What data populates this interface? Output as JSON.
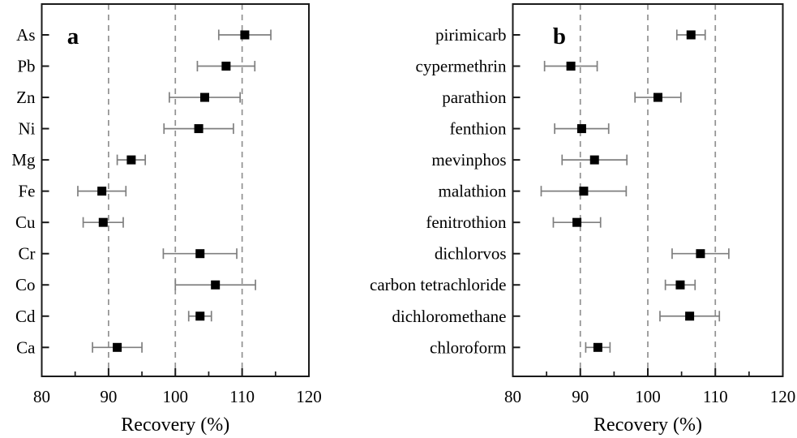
{
  "colors": {
    "background": "#ffffff",
    "marker": "#000000",
    "error_bar": "#7f7f7f",
    "grid": "#919191",
    "axis": "#1a1a1a",
    "text": "#000000"
  },
  "chart_data": [
    {
      "type": "scatter",
      "subtype": "horizontal_error_bar",
      "panel_label": "a",
      "xlabel": "Recovery (%)",
      "xlim": [
        80,
        120
      ],
      "xticks": [
        80,
        90,
        100,
        110,
        120
      ],
      "xticks_minor": [
        85,
        95,
        105,
        115
      ],
      "gridlines_x": [
        90,
        100,
        110
      ],
      "grid_style": "dashed",
      "legend": "none",
      "marker": "filled-square",
      "categories": [
        "As",
        "Pb",
        "Zn",
        "Ni",
        "Mg",
        "Fe",
        "Cu",
        "Cr",
        "Co",
        "Cd",
        "Ca"
      ],
      "values": [
        110.4,
        107.6,
        104.4,
        103.5,
        93.4,
        89.0,
        89.2,
        103.7,
        106.0,
        103.7,
        91.3
      ],
      "errors": [
        3.9,
        4.3,
        5.3,
        5.2,
        2.1,
        3.6,
        3.0,
        5.5,
        6.0,
        1.7,
        3.7
      ]
    },
    {
      "type": "scatter",
      "subtype": "horizontal_error_bar",
      "panel_label": "b",
      "xlabel": "Recovery (%)",
      "xlim": [
        80,
        120
      ],
      "xticks": [
        80,
        90,
        100,
        110,
        120
      ],
      "xticks_minor": [
        85,
        95,
        105,
        115
      ],
      "gridlines_x": [
        90,
        100,
        110
      ],
      "grid_style": "dashed",
      "legend": "none",
      "marker": "filled-square",
      "categories": [
        "pirimicarb",
        "cypermethrin",
        "parathion",
        "fenthion",
        "mevinphos",
        "malathion",
        "fenitrothion",
        "dichlorvos",
        "carbon tetrachloride",
        "dichloromethane",
        "chloroform"
      ],
      "values": [
        106.4,
        88.6,
        101.5,
        90.2,
        92.1,
        90.5,
        89.5,
        107.8,
        104.8,
        106.2,
        92.6
      ],
      "errors": [
        2.1,
        3.9,
        3.4,
        4.0,
        4.8,
        6.3,
        3.5,
        4.2,
        2.2,
        4.4,
        1.8
      ]
    }
  ]
}
